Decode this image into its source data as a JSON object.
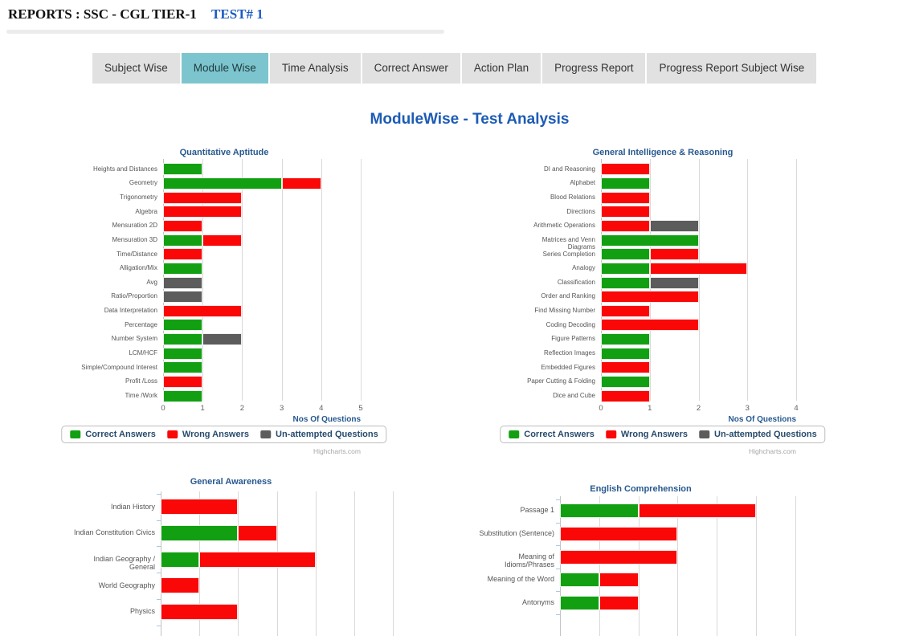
{
  "header": {
    "title": "REPORTS : SSC - CGL TIER-1",
    "test_label": "TEST# 1"
  },
  "tabs": [
    {
      "label": "Subject Wise",
      "active": false
    },
    {
      "label": "Module Wise",
      "active": true
    },
    {
      "label": "Time Analysis",
      "active": false
    },
    {
      "label": "Correct Answer",
      "active": false
    },
    {
      "label": "Action Plan",
      "active": false
    },
    {
      "label": "Progress Report",
      "active": false
    },
    {
      "label": "Progress Report Subject Wise",
      "active": false
    }
  ],
  "page_title": "ModuleWise - Test Analysis",
  "colors": {
    "correct": "#12a012",
    "wrong": "#fa0707",
    "unattempted": "#5c5c5c",
    "active_tab": "#7dc5ce",
    "page_title_blue": "#1c5bb5",
    "chart_title_blue": "#27598f"
  },
  "legend": {
    "items": [
      {
        "label": "Correct Answers",
        "color_key": "correct"
      },
      {
        "label": "Wrong Answers",
        "color_key": "wrong"
      },
      {
        "label": "Un-attempted Questions",
        "color_key": "unattempted"
      }
    ]
  },
  "axis_title": "Nos Of Questions",
  "credit": "Highcharts.com",
  "chart_data": [
    {
      "type": "bar",
      "title": "Quantitative Aptitude",
      "xlabel": "Nos Of Questions",
      "xlim": [
        0,
        5
      ],
      "ticks": [
        0,
        1,
        2,
        3,
        4,
        5
      ],
      "grid": true,
      "legend_position": "bottom",
      "categories": [
        "Heights and Distances",
        "Geometry",
        "Trigonometry",
        "Algebra",
        "Mensuration 2D",
        "Mensuration 3D",
        "Time/Distance",
        "Alligation/Mix",
        "Avg",
        "Ratio/Proportion",
        "Data Interpretation",
        "Percentage",
        "Number System",
        "LCM/HCF",
        "Simple/Compound Interest",
        "Profit /Loss",
        "Time /Work"
      ],
      "series": [
        {
          "name": "Correct Answers",
          "values": [
            1,
            3,
            0,
            0,
            0,
            1,
            0,
            1,
            0,
            0,
            0,
            1,
            1,
            1,
            1,
            0,
            1
          ]
        },
        {
          "name": "Wrong Answers",
          "values": [
            0,
            1,
            2,
            2,
            1,
            1,
            1,
            0,
            0,
            0,
            2,
            0,
            0,
            0,
            0,
            1,
            0
          ]
        },
        {
          "name": "Un-attempted Questions",
          "values": [
            0,
            0,
            0,
            0,
            0,
            0,
            0,
            0,
            1,
            1,
            0,
            0,
            1,
            0,
            0,
            0,
            0
          ]
        }
      ]
    },
    {
      "type": "bar",
      "title": "General Intelligence & Reasoning",
      "xlabel": "Nos Of Questions",
      "xlim": [
        0,
        4
      ],
      "ticks": [
        0,
        1,
        2,
        3,
        4
      ],
      "grid": true,
      "legend_position": "bottom",
      "categories": [
        "DI and Reasoning",
        "Alphabet",
        "Blood Relations",
        "Directions",
        "Arithmetic Operations",
        "Matrices and Venn Diagrams",
        "Series Completion",
        "Analogy",
        "Classification",
        "Order and Ranking",
        "Find Missing Number",
        "Coding Decoding",
        "Figure Patterns",
        "Reflection Images",
        "Embedded Figures",
        "Paper Cutting & Folding",
        "Dice and Cube"
      ],
      "series": [
        {
          "name": "Correct Answers",
          "values": [
            0,
            1,
            0,
            0,
            0,
            2,
            1,
            1,
            1,
            0,
            0,
            0,
            1,
            1,
            0,
            1,
            0
          ]
        },
        {
          "name": "Wrong Answers",
          "values": [
            1,
            0,
            1,
            1,
            1,
            0,
            1,
            2,
            0,
            2,
            1,
            2,
            0,
            0,
            1,
            0,
            1
          ]
        },
        {
          "name": "Un-attempted Questions",
          "values": [
            0,
            0,
            0,
            0,
            1,
            0,
            0,
            0,
            1,
            0,
            0,
            0,
            0,
            0,
            0,
            0,
            0
          ]
        }
      ]
    },
    {
      "type": "bar",
      "title": "General Awareness",
      "xlabel": "",
      "xlim": [
        0,
        6
      ],
      "ticks": [],
      "grid": true,
      "legend_position": "none-visible-cut-off",
      "categories": [
        "Indian History",
        "Indian Constitution Civics",
        "Indian Geography / General",
        "World Geography",
        "Physics"
      ],
      "series": [
        {
          "name": "Correct Answers",
          "values": [
            0,
            2,
            1,
            0,
            0
          ]
        },
        {
          "name": "Wrong Answers",
          "values": [
            2,
            1,
            3,
            1,
            2
          ]
        },
        {
          "name": "Un-attempted Questions",
          "values": [
            0,
            0,
            0,
            0,
            0
          ]
        }
      ]
    },
    {
      "type": "bar",
      "title": "English Comprehension",
      "xlabel": "",
      "xlim": [
        0,
        6
      ],
      "ticks": [],
      "grid": true,
      "legend_position": "none-visible-cut-off",
      "categories": [
        "Passage 1",
        "Substitution (Sentence)",
        "Meaning of Idioms/Phrases",
        "Meaning of the Word",
        "Antonyms"
      ],
      "series": [
        {
          "name": "Correct Answers",
          "values": [
            2,
            0,
            0,
            1,
            1
          ]
        },
        {
          "name": "Wrong Answers",
          "values": [
            3,
            3,
            3,
            1,
            1
          ]
        },
        {
          "name": "Un-attempted Questions",
          "values": [
            0,
            0,
            0,
            0,
            0
          ]
        }
      ]
    }
  ]
}
